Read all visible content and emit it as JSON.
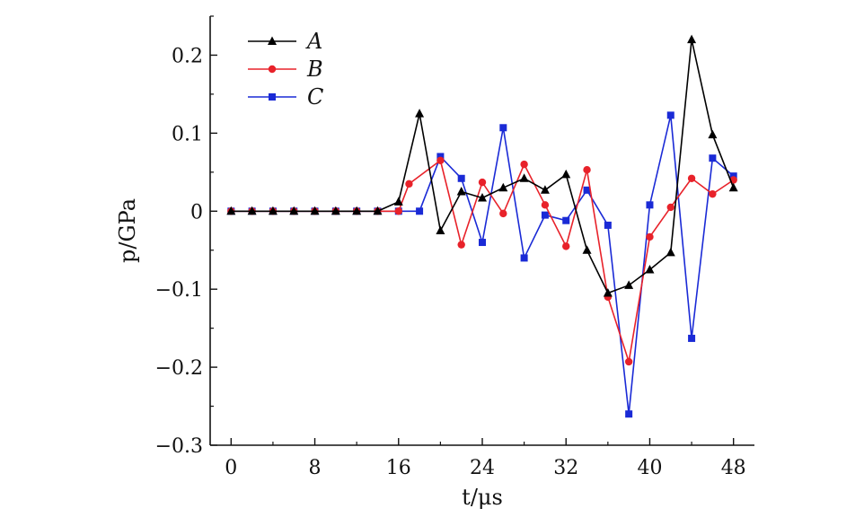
{
  "chart_data": {
    "type": "line",
    "xlabel": "t/μs",
    "ylabel": "p/GPa",
    "xlim": [
      -2,
      50
    ],
    "ylim": [
      -0.3,
      0.25
    ],
    "x_ticks": [
      0,
      8,
      16,
      24,
      32,
      40,
      48
    ],
    "x_tick_labels": [
      "0",
      "8",
      "16",
      "24",
      "32",
      "40",
      "48"
    ],
    "y_ticks": [
      0.2,
      0.1,
      0,
      -0.1,
      -0.2,
      -0.3
    ],
    "y_tick_labels": [
      "0.2",
      "0.1",
      "0",
      "−0.1",
      "−0.2",
      "−0.3"
    ],
    "grid": false,
    "legend_position": "top-left",
    "series": [
      {
        "name": "A",
        "color": "#000000",
        "marker": "triangle",
        "x": [
          0,
          2,
          4,
          6,
          8,
          10,
          12,
          14,
          16,
          18,
          20,
          22,
          24,
          26,
          28,
          30,
          32,
          34,
          36,
          38,
          40,
          42,
          44,
          46,
          48
        ],
        "y": [
          0,
          0,
          0,
          0,
          0,
          0,
          0,
          0,
          0.012,
          0.125,
          -0.025,
          0.025,
          0.017,
          0.03,
          0.042,
          0.027,
          0.047,
          -0.05,
          -0.105,
          -0.095,
          -0.075,
          -0.053,
          0.22,
          0.098,
          0.03
        ]
      },
      {
        "name": "B",
        "color": "#e8222a",
        "marker": "circle",
        "x": [
          0,
          2,
          4,
          6,
          8,
          10,
          12,
          14,
          16,
          17,
          20,
          22,
          24,
          26,
          28,
          30,
          32,
          34,
          36,
          38,
          40,
          42,
          44,
          46,
          48
        ],
        "y": [
          0,
          0,
          0,
          0,
          0,
          0,
          0,
          0,
          0.0,
          0.035,
          0.065,
          -0.043,
          0.037,
          -0.003,
          0.06,
          0.008,
          -0.045,
          0.053,
          -0.11,
          -0.193,
          -0.033,
          0.005,
          0.042,
          0.022,
          0.04
        ]
      },
      {
        "name": "C",
        "color": "#1a2ad6",
        "marker": "square",
        "x": [
          0,
          2,
          4,
          6,
          8,
          10,
          12,
          14,
          16,
          18,
          20,
          22,
          24,
          26,
          28,
          30,
          32,
          34,
          36,
          38,
          40,
          42,
          44,
          46,
          48
        ],
        "y": [
          0,
          0,
          0,
          0,
          0,
          0,
          0,
          0,
          0,
          0,
          0.07,
          0.042,
          -0.04,
          0.107,
          -0.06,
          -0.005,
          -0.012,
          0.027,
          -0.018,
          -0.26,
          0.008,
          0.123,
          -0.163,
          0.068,
          0.045
        ]
      }
    ]
  }
}
